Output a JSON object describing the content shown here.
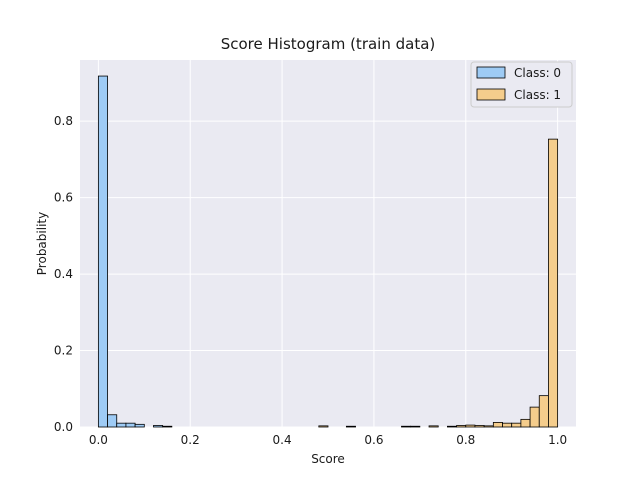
{
  "chart_data": {
    "type": "bar",
    "title": "Score Histogram (train data)",
    "xlabel": "Score",
    "ylabel": "Probability",
    "xlim": [
      -0.04,
      1.04
    ],
    "ylim": [
      0,
      0.96
    ],
    "xticks": [
      0.0,
      0.2,
      0.4,
      0.6,
      0.8,
      1.0
    ],
    "xtick_labels": [
      "0.0",
      "0.2",
      "0.4",
      "0.6",
      "0.8",
      "1.0"
    ],
    "yticks": [
      0.0,
      0.2,
      0.4,
      0.6,
      0.8
    ],
    "ytick_labels": [
      "0.0",
      "0.2",
      "0.4",
      "0.6",
      "0.8"
    ],
    "grid": true,
    "legend_position": "top-right",
    "bin_width": 0.02,
    "series": [
      {
        "name": "Class: 0",
        "color": "#9ecbf5",
        "bins": [
          {
            "x0": 0.0,
            "value": 0.918
          },
          {
            "x0": 0.02,
            "value": 0.032
          },
          {
            "x0": 0.04,
            "value": 0.01
          },
          {
            "x0": 0.06,
            "value": 0.01
          },
          {
            "x0": 0.08,
            "value": 0.007
          },
          {
            "x0": 0.12,
            "value": 0.004
          },
          {
            "x0": 0.14,
            "value": 0.002
          }
        ]
      },
      {
        "name": "Class: 1",
        "color": "#f5cd8c",
        "bins": [
          {
            "x0": 0.48,
            "value": 0.003
          },
          {
            "x0": 0.54,
            "value": 0.002
          },
          {
            "x0": 0.66,
            "value": 0.002
          },
          {
            "x0": 0.68,
            "value": 0.002
          },
          {
            "x0": 0.72,
            "value": 0.003
          },
          {
            "x0": 0.76,
            "value": 0.002
          },
          {
            "x0": 0.78,
            "value": 0.004
          },
          {
            "x0": 0.8,
            "value": 0.005
          },
          {
            "x0": 0.82,
            "value": 0.004
          },
          {
            "x0": 0.84,
            "value": 0.003
          },
          {
            "x0": 0.86,
            "value": 0.012
          },
          {
            "x0": 0.88,
            "value": 0.01
          },
          {
            "x0": 0.9,
            "value": 0.01
          },
          {
            "x0": 0.92,
            "value": 0.02
          },
          {
            "x0": 0.94,
            "value": 0.052
          },
          {
            "x0": 0.96,
            "value": 0.082
          },
          {
            "x0": 0.98,
            "value": 0.753
          }
        ]
      }
    ]
  },
  "colors": {
    "plot_background": "#eaeaf2",
    "grid": "#ffffff",
    "bar_edge": "#000000"
  }
}
